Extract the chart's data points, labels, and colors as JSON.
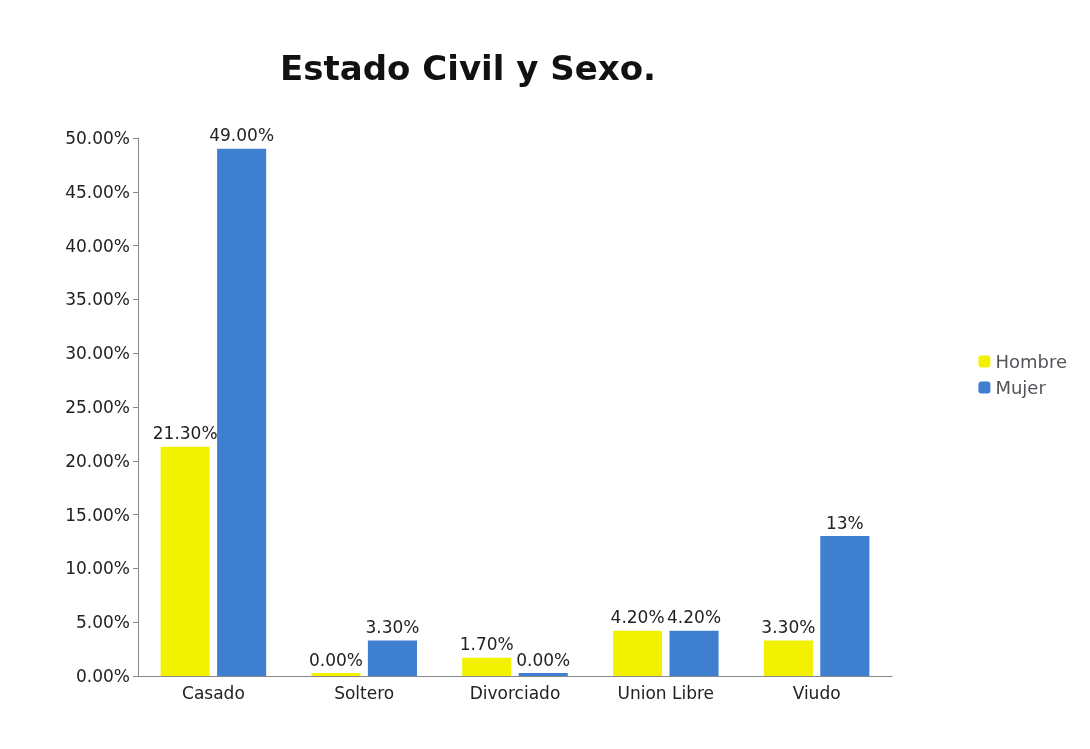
{
  "chart_data": {
    "type": "bar",
    "title": "Estado Civil y Sexo.",
    "categories": [
      "Casado",
      "Soltero",
      "Divorciado",
      "Union Libre",
      "Viudo"
    ],
    "series": [
      {
        "name": "Hombre",
        "color": "#f2f200",
        "values": [
          21.3,
          0,
          1.7,
          4.2,
          3.3
        ],
        "value_labels": [
          "21.30%",
          "0.00%",
          "1.70%",
          "4.20%",
          "3.30%"
        ]
      },
      {
        "name": "Mujer",
        "color": "#3f7fd0",
        "values": [
          49,
          3.3,
          0,
          4.2,
          13
        ],
        "value_labels": [
          "49.00%",
          "3.30%",
          "0.00%",
          "4.20%",
          "13%"
        ]
      }
    ],
    "ylim": [
      0,
      50
    ],
    "yticks": [
      {
        "value": 0,
        "label": "0.00%"
      },
      {
        "value": 5,
        "label": "5.00%"
      },
      {
        "value": 10,
        "label": "10.00%"
      },
      {
        "value": 15,
        "label": "15.00%"
      },
      {
        "value": 20,
        "label": "20.00%"
      },
      {
        "value": 25,
        "label": "25.00%"
      },
      {
        "value": 30,
        "label": "30.00%"
      },
      {
        "value": 35,
        "label": "35.00%"
      },
      {
        "value": 40,
        "label": "40.00%"
      },
      {
        "value": 45,
        "label": "45.00%"
      },
      {
        "value": 50,
        "label": "50.00%"
      }
    ],
    "grid": false,
    "legend": "right"
  }
}
